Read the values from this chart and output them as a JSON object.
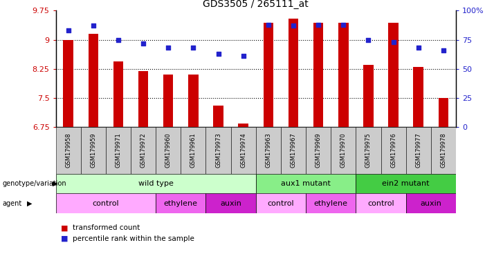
{
  "title": "GDS3505 / 265111_at",
  "samples": [
    "GSM179958",
    "GSM179959",
    "GSM179971",
    "GSM179972",
    "GSM179960",
    "GSM179961",
    "GSM179973",
    "GSM179974",
    "GSM179963",
    "GSM179967",
    "GSM179969",
    "GSM179970",
    "GSM179975",
    "GSM179976",
    "GSM179977",
    "GSM179978"
  ],
  "bar_values": [
    9.0,
    9.15,
    8.45,
    8.2,
    8.1,
    8.1,
    7.3,
    6.85,
    9.43,
    9.55,
    9.43,
    9.43,
    8.35,
    9.43,
    8.3,
    7.5
  ],
  "dot_values": [
    83,
    87,
    75,
    72,
    68,
    68,
    63,
    61,
    88,
    87,
    88,
    88,
    75,
    73,
    68,
    66
  ],
  "ylim_left": [
    6.75,
    9.75
  ],
  "ylim_right": [
    0,
    100
  ],
  "yticks_left": [
    6.75,
    7.5,
    8.25,
    9.0,
    9.75
  ],
  "yticks_right": [
    0,
    25,
    50,
    75,
    100
  ],
  "ytick_labels_left": [
    "6.75",
    "7.5",
    "8.25",
    "9",
    "9.75"
  ],
  "ytick_labels_right": [
    "0",
    "25",
    "50",
    "75",
    "100%"
  ],
  "bar_color": "#cc0000",
  "dot_color": "#2222cc",
  "bar_bottom": 6.75,
  "bar_width": 0.4,
  "genotype_groups": [
    {
      "label": "wild type",
      "start": 0,
      "end": 8,
      "color": "#ccffcc"
    },
    {
      "label": "aux1 mutant",
      "start": 8,
      "end": 12,
      "color": "#88ee88"
    },
    {
      "label": "ein2 mutant",
      "start": 12,
      "end": 16,
      "color": "#44cc44"
    }
  ],
  "agent_groups": [
    {
      "label": "control",
      "start": 0,
      "end": 4,
      "color": "#ffaaff"
    },
    {
      "label": "ethylene",
      "start": 4,
      "end": 6,
      "color": "#ee66ee"
    },
    {
      "label": "auxin",
      "start": 6,
      "end": 8,
      "color": "#cc22cc"
    },
    {
      "label": "control",
      "start": 8,
      "end": 10,
      "color": "#ffaaff"
    },
    {
      "label": "ethylene",
      "start": 10,
      "end": 12,
      "color": "#ee66ee"
    },
    {
      "label": "control",
      "start": 12,
      "end": 14,
      "color": "#ffaaff"
    },
    {
      "label": "auxin",
      "start": 14,
      "end": 16,
      "color": "#cc22cc"
    }
  ],
  "legend_items": [
    {
      "label": "transformed count",
      "color": "#cc0000"
    },
    {
      "label": "percentile rank within the sample",
      "color": "#2222cc"
    }
  ],
  "bg_color": "#ffffff",
  "tick_label_color_left": "#cc0000",
  "tick_label_color_right": "#2222cc",
  "sample_box_color": "#cccccc",
  "gridline_color": "#000000"
}
